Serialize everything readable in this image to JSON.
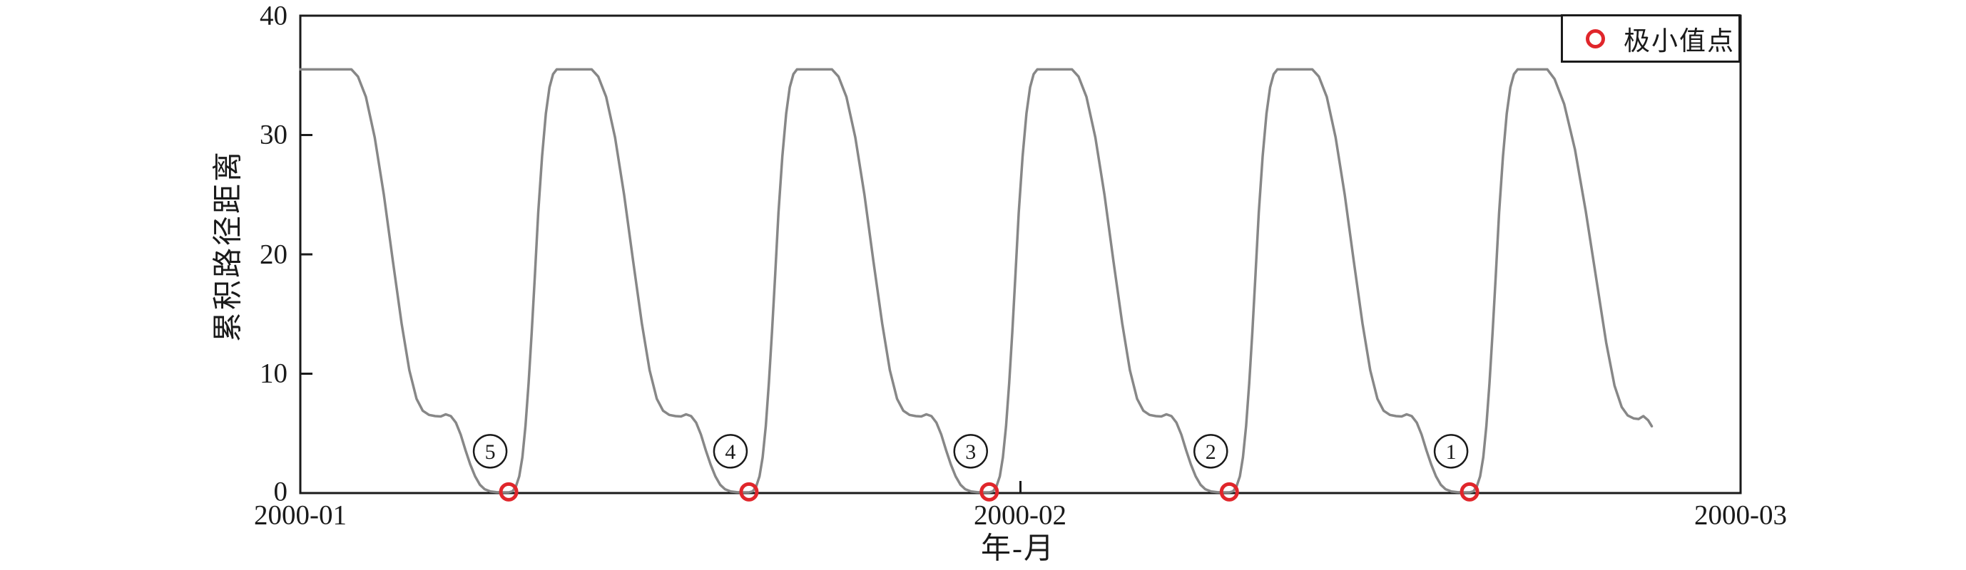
{
  "page": {
    "background": "#ffffff"
  },
  "chart_data": {
    "type": "line",
    "title": "",
    "xlabel": "年-月",
    "ylabel": "累积路径距离",
    "grid": false,
    "frame": "full-box",
    "axis_color": "#1a1a1a",
    "x_axis": {
      "tick_labels": [
        "2000-01",
        "2000-02",
        "2000-03"
      ],
      "tick_days": [
        0,
        30,
        60
      ],
      "lim_days": [
        0,
        60
      ]
    },
    "y_axis": {
      "tick_labels": [
        "40",
        "30",
        "20",
        "10",
        "0"
      ],
      "tick_values": [
        40,
        30,
        20,
        10,
        0
      ],
      "inner_tick_values": [
        30,
        20,
        10
      ],
      "lim": [
        0,
        40
      ]
    },
    "series": [
      {
        "name": "累积路径距离",
        "color": "#878787",
        "stroke_width": 3.5,
        "points_day_value": [
          [
            0,
            35.5
          ],
          [
            2.13,
            35.5
          ],
          [
            2.4,
            34.9
          ],
          [
            2.73,
            33.2
          ],
          [
            3.1,
            29.8
          ],
          [
            3.48,
            25
          ],
          [
            3.85,
            19.5
          ],
          [
            4.22,
            14.2
          ],
          [
            4.54,
            10.3
          ],
          [
            4.84,
            7.9
          ],
          [
            5.1,
            6.9
          ],
          [
            5.36,
            6.55
          ],
          [
            5.62,
            6.45
          ],
          [
            5.85,
            6.42
          ],
          [
            6.06,
            6.6
          ],
          [
            6.27,
            6.45
          ],
          [
            6.48,
            5.9
          ],
          [
            6.68,
            4.9
          ],
          [
            6.88,
            3.6
          ],
          [
            7.08,
            2.4
          ],
          [
            7.28,
            1.4
          ],
          [
            7.48,
            0.7
          ],
          [
            7.68,
            0.32
          ],
          [
            7.92,
            0.14
          ],
          [
            8.17,
            0.08
          ],
          [
            8.42,
            0.06
          ],
          [
            8.68,
            0.06
          ],
          [
            8.84,
            0.15
          ],
          [
            8.98,
            0.55
          ],
          [
            9.12,
            1.4
          ],
          [
            9.25,
            3
          ],
          [
            9.38,
            5.6
          ],
          [
            9.51,
            9.2
          ],
          [
            9.64,
            13.5
          ],
          [
            9.77,
            18.2
          ],
          [
            9.91,
            23.5
          ],
          [
            10.07,
            28.2
          ],
          [
            10.23,
            31.8
          ],
          [
            10.38,
            34
          ],
          [
            10.53,
            35.1
          ],
          [
            10.68,
            35.5
          ],
          [
            12.14,
            35.5
          ],
          [
            12.41,
            34.9
          ],
          [
            12.74,
            33.2
          ],
          [
            13.11,
            29.8
          ],
          [
            13.49,
            25
          ],
          [
            13.86,
            19.5
          ],
          [
            14.23,
            14.2
          ],
          [
            14.55,
            10.3
          ],
          [
            14.85,
            7.9
          ],
          [
            15.11,
            6.9
          ],
          [
            15.37,
            6.55
          ],
          [
            15.63,
            6.45
          ],
          [
            15.86,
            6.42
          ],
          [
            16.07,
            6.6
          ],
          [
            16.28,
            6.45
          ],
          [
            16.49,
            5.9
          ],
          [
            16.69,
            4.9
          ],
          [
            16.89,
            3.6
          ],
          [
            17.09,
            2.4
          ],
          [
            17.29,
            1.4
          ],
          [
            17.49,
            0.7
          ],
          [
            17.69,
            0.32
          ],
          [
            17.93,
            0.14
          ],
          [
            18.18,
            0.08
          ],
          [
            18.43,
            0.06
          ],
          [
            18.69,
            0.06
          ],
          [
            18.85,
            0.15
          ],
          [
            18.99,
            0.55
          ],
          [
            19.13,
            1.4
          ],
          [
            19.26,
            3
          ],
          [
            19.39,
            5.6
          ],
          [
            19.52,
            9.2
          ],
          [
            19.65,
            13.5
          ],
          [
            19.78,
            18.2
          ],
          [
            19.92,
            23.5
          ],
          [
            20.08,
            28.2
          ],
          [
            20.24,
            31.8
          ],
          [
            20.39,
            34
          ],
          [
            20.54,
            35.1
          ],
          [
            20.69,
            35.5
          ],
          [
            22.15,
            35.5
          ],
          [
            22.42,
            34.9
          ],
          [
            22.75,
            33.2
          ],
          [
            23.12,
            29.8
          ],
          [
            23.5,
            25
          ],
          [
            23.87,
            19.5
          ],
          [
            24.24,
            14.2
          ],
          [
            24.56,
            10.3
          ],
          [
            24.86,
            7.9
          ],
          [
            25.12,
            6.9
          ],
          [
            25.38,
            6.55
          ],
          [
            25.64,
            6.45
          ],
          [
            25.87,
            6.42
          ],
          [
            26.08,
            6.6
          ],
          [
            26.29,
            6.45
          ],
          [
            26.5,
            5.9
          ],
          [
            26.7,
            4.9
          ],
          [
            26.9,
            3.6
          ],
          [
            27.1,
            2.4
          ],
          [
            27.3,
            1.4
          ],
          [
            27.5,
            0.7
          ],
          [
            27.7,
            0.32
          ],
          [
            27.94,
            0.14
          ],
          [
            28.19,
            0.08
          ],
          [
            28.44,
            0.06
          ],
          [
            28.7,
            0.06
          ],
          [
            28.86,
            0.15
          ],
          [
            29,
            0.55
          ],
          [
            29.14,
            1.4
          ],
          [
            29.27,
            3
          ],
          [
            29.4,
            5.6
          ],
          [
            29.53,
            9.2
          ],
          [
            29.66,
            13.5
          ],
          [
            29.79,
            18.2
          ],
          [
            29.93,
            23.5
          ],
          [
            30.09,
            28.2
          ],
          [
            30.25,
            31.8
          ],
          [
            30.4,
            34
          ],
          [
            30.55,
            35.1
          ],
          [
            30.7,
            35.5
          ],
          [
            32.15,
            35.5
          ],
          [
            32.42,
            34.9
          ],
          [
            32.75,
            33.2
          ],
          [
            33.12,
            29.8
          ],
          [
            33.5,
            25
          ],
          [
            33.87,
            19.5
          ],
          [
            34.24,
            14.2
          ],
          [
            34.56,
            10.3
          ],
          [
            34.86,
            7.9
          ],
          [
            35.12,
            6.9
          ],
          [
            35.38,
            6.55
          ],
          [
            35.64,
            6.45
          ],
          [
            35.87,
            6.42
          ],
          [
            36.08,
            6.6
          ],
          [
            36.29,
            6.45
          ],
          [
            36.5,
            5.9
          ],
          [
            36.7,
            4.9
          ],
          [
            36.9,
            3.6
          ],
          [
            37.1,
            2.4
          ],
          [
            37.3,
            1.4
          ],
          [
            37.5,
            0.7
          ],
          [
            37.7,
            0.32
          ],
          [
            37.94,
            0.14
          ],
          [
            38.19,
            0.08
          ],
          [
            38.44,
            0.06
          ],
          [
            38.7,
            0.06
          ],
          [
            38.86,
            0.15
          ],
          [
            39,
            0.55
          ],
          [
            39.14,
            1.4
          ],
          [
            39.27,
            3
          ],
          [
            39.4,
            5.6
          ],
          [
            39.53,
            9.2
          ],
          [
            39.66,
            13.5
          ],
          [
            39.79,
            18.2
          ],
          [
            39.93,
            23.5
          ],
          [
            40.09,
            28.2
          ],
          [
            40.25,
            31.8
          ],
          [
            40.4,
            34
          ],
          [
            40.55,
            35.1
          ],
          [
            40.7,
            35.5
          ],
          [
            42.16,
            35.5
          ],
          [
            42.43,
            34.9
          ],
          [
            42.76,
            33.2
          ],
          [
            43.13,
            29.8
          ],
          [
            43.51,
            25
          ],
          [
            43.88,
            19.5
          ],
          [
            44.25,
            14.2
          ],
          [
            44.57,
            10.3
          ],
          [
            44.87,
            7.9
          ],
          [
            45.13,
            6.9
          ],
          [
            45.39,
            6.55
          ],
          [
            45.65,
            6.45
          ],
          [
            45.88,
            6.42
          ],
          [
            46.09,
            6.6
          ],
          [
            46.3,
            6.45
          ],
          [
            46.51,
            5.9
          ],
          [
            46.71,
            4.9
          ],
          [
            46.91,
            3.6
          ],
          [
            47.11,
            2.4
          ],
          [
            47.31,
            1.4
          ],
          [
            47.51,
            0.7
          ],
          [
            47.71,
            0.32
          ],
          [
            47.95,
            0.14
          ],
          [
            48.2,
            0.08
          ],
          [
            48.45,
            0.06
          ],
          [
            48.71,
            0.06
          ],
          [
            48.87,
            0.15
          ],
          [
            49.01,
            0.55
          ],
          [
            49.15,
            1.4
          ],
          [
            49.28,
            3
          ],
          [
            49.41,
            5.6
          ],
          [
            49.54,
            9.2
          ],
          [
            49.67,
            13.5
          ],
          [
            49.8,
            18.2
          ],
          [
            49.94,
            23.5
          ],
          [
            50.1,
            28.2
          ],
          [
            50.26,
            31.8
          ],
          [
            50.41,
            34
          ],
          [
            50.56,
            35.1
          ],
          [
            50.71,
            35.5
          ],
          [
            51.95,
            35.5
          ],
          [
            52.25,
            34.7
          ],
          [
            52.65,
            32.6
          ],
          [
            53.1,
            28.8
          ],
          [
            53.55,
            23.6
          ],
          [
            54,
            17.8
          ],
          [
            54.4,
            12.6
          ],
          [
            54.75,
            9
          ],
          [
            55.05,
            7.2
          ],
          [
            55.3,
            6.5
          ],
          [
            55.55,
            6.25
          ],
          [
            55.75,
            6.2
          ],
          [
            55.95,
            6.45
          ],
          [
            56.15,
            6.1
          ],
          [
            56.3,
            5.6
          ]
        ]
      }
    ],
    "minima_markers": {
      "legend_label": "极小值点",
      "color": "#e0262b",
      "marker": "red-open-circle",
      "value": 0.1,
      "points": [
        {
          "label": "5",
          "day": 8.68
        },
        {
          "label": "4",
          "day": 18.69
        },
        {
          "label": "3",
          "day": 28.7
        },
        {
          "label": "2",
          "day": 38.7
        },
        {
          "label": "1",
          "day": 48.71
        }
      ],
      "annotation_value": 3.5
    },
    "legend_position": "upper-right"
  }
}
